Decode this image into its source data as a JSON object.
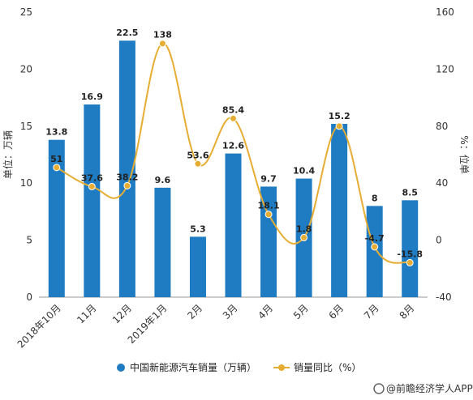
{
  "chart_data": {
    "type": "bar",
    "categories": [
      "2018年10月",
      "11月",
      "12月",
      "2019年1月",
      "2月",
      "3月",
      "4月",
      "5月",
      "6月",
      "7月",
      "8月"
    ],
    "series": [
      {
        "name": "中国新能源汽车销量（万辆）",
        "type": "bar",
        "axis": "left",
        "color": "#1f7bc2",
        "values": [
          13.8,
          16.9,
          22.5,
          9.6,
          5.3,
          12.6,
          9.7,
          10.4,
          15.2,
          8,
          8.5
        ]
      },
      {
        "name": "销量同比（%）",
        "type": "line",
        "axis": "right",
        "color": "#e6ad32",
        "values": [
          51,
          37.6,
          38.2,
          138,
          53.6,
          85.4,
          18.1,
          1.8,
          80,
          -4.7,
          -15.8
        ]
      }
    ],
    "bar_labels": [
      "13.8",
      "16.9",
      "22.5",
      "9.6",
      "5.3",
      "12.6",
      "9.7",
      "10.4",
      "15.2",
      "8",
      "8.5"
    ],
    "line_labels": [
      "51",
      "37.6",
      "38.2",
      "138",
      "53.6",
      "85.4",
      "18.1",
      "1.8",
      "",
      "-4.7",
      "-15.8"
    ],
    "ylabel_left": "单位：万辆",
    "ylabel_right": "%：位单",
    "ylim_left": [
      0,
      25
    ],
    "ylim_right": [
      -40,
      160
    ],
    "yticks_left": [
      "0",
      "5",
      "10",
      "15",
      "20",
      "25"
    ],
    "yticks_right": [
      "-40",
      "0",
      "40",
      "80",
      "120",
      "160"
    ],
    "grid": false,
    "legend_position": "bottom",
    "smooth_line": true
  },
  "source": "@前瞻经济学人APP"
}
